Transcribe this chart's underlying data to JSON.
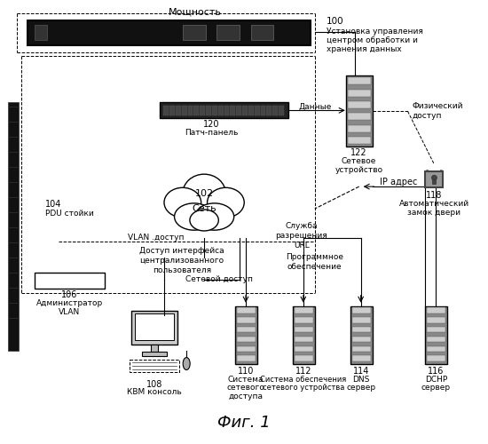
{
  "bg_color": "#ffffff",
  "fig_title": "Фиг. 1",
  "label_moscnost": "Мощность",
  "label_100": "100",
  "label_100a": "Установка управления",
  "label_100b": "центром обработки и",
  "label_100c": "хранения данных",
  "label_120": "120",
  "label_120a": "Патч-панель",
  "label_122": "122",
  "label_122a": "Сетевое",
  "label_122b": "устройство",
  "label_fiz": "Физический",
  "label_fiz2": "доступ",
  "label_102": "102",
  "label_102a": "Сеть",
  "label_104": "104",
  "label_104a": "PDU стойки",
  "label_106": "106",
  "label_106a": "Администратор",
  "label_106b": "VLAN",
  "label_108": "108",
  "label_108a": "КВМ консоль",
  "label_110": "110",
  "label_110a": "Система",
  "label_110b": "сетевого",
  "label_110c": "доступа",
  "label_112": "112",
  "label_112a": "Система обеспечения",
  "label_112b": "сетевого устройства",
  "label_114": "114",
  "label_114a": "DNS",
  "label_114b": "сервер",
  "label_116": "116",
  "label_116a": "DCHP",
  "label_116b": "сервер",
  "label_118": "118",
  "label_118a": "Автоматический",
  "label_118b": "замок двери",
  "label_vlan": "VLAN .доступ",
  "label_ui": "Доступ интерфейса",
  "label_ui2": "централизованного",
  "label_ui3": "пользователя",
  "label_netaccess": "Сетевой доступ",
  "label_url": "Служба",
  "label_url2": "разрешения",
  "label_url3": "URL",
  "label_sw": "Программное",
  "label_sw2": "обеспечение",
  "label_ip": "IP адрес",
  "label_data": "Данные"
}
